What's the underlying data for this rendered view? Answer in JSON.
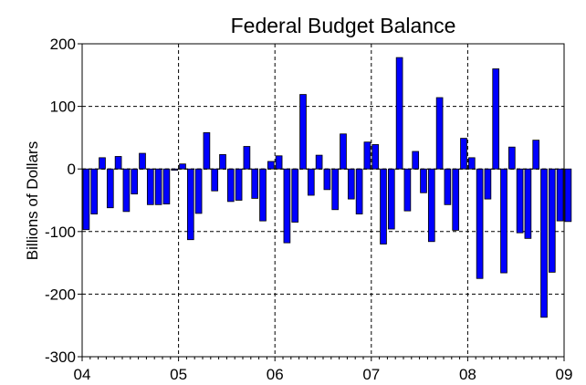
{
  "chart_data": {
    "type": "bar",
    "title": "Federal Budget Balance",
    "xlabel": "",
    "ylabel": "Billions of Dollars",
    "ylim": [
      -300,
      200
    ],
    "yticks": [
      "200",
      "100",
      "0",
      "-100",
      "-200",
      "-300"
    ],
    "xticks": [
      "04",
      "05",
      "06",
      "07",
      "08",
      "09"
    ],
    "grid": true,
    "bar_color": "#0000ff",
    "series": [
      {
        "values": [
          -97,
          -72,
          18,
          -62,
          20,
          -68,
          -40,
          25,
          -57,
          -57,
          -56,
          -2,
          8,
          -113,
          -71,
          58,
          -35,
          23,
          -52,
          -50,
          36,
          -47,
          -83,
          12,
          21,
          -118,
          -85,
          119,
          -42,
          22,
          -33,
          -65,
          56,
          -48,
          -72,
          43,
          39,
          -120,
          -96,
          178,
          -67,
          28,
          -38,
          -116,
          114,
          -57,
          -98,
          49,
          18,
          -175,
          -48,
          160,
          -166,
          35,
          -102,
          -111,
          46,
          -237,
          -165,
          -83,
          -84
        ]
      }
    ]
  }
}
